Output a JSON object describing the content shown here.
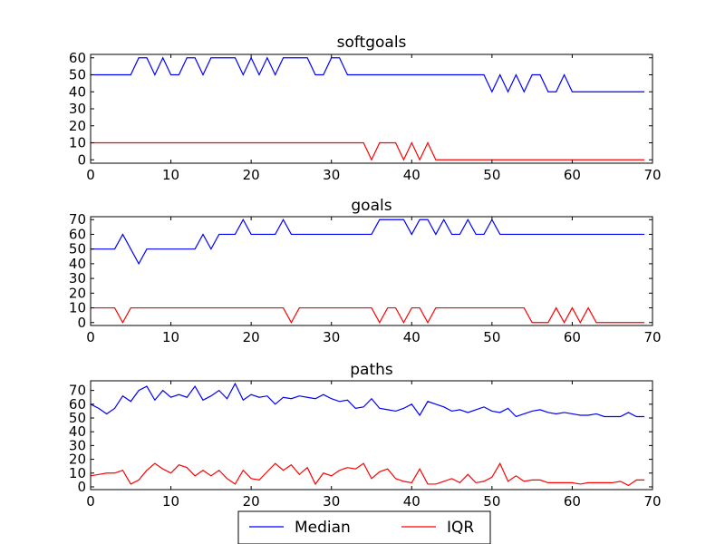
{
  "chart_data": [
    {
      "type": "line",
      "title": "softgoals",
      "xlabel": "",
      "ylabel": "",
      "xlim": [
        0,
        70
      ],
      "ylim": [
        -2,
        62
      ],
      "xticks": [
        "0",
        "10",
        "20",
        "30",
        "40",
        "50",
        "60",
        "70"
      ],
      "yticks": [
        "0",
        "10",
        "20",
        "30",
        "40",
        "50",
        "60"
      ],
      "grid": false,
      "x_start": 0,
      "series": [
        {
          "name": "Median",
          "color": "#0000ff",
          "values": [
            50,
            50,
            50,
            50,
            50,
            50,
            60,
            60,
            50,
            60,
            50,
            50,
            60,
            60,
            50,
            60,
            60,
            60,
            60,
            50,
            60,
            50,
            60,
            50,
            60,
            60,
            60,
            60,
            50,
            50,
            60,
            60,
            50,
            50,
            50,
            50,
            50,
            50,
            50,
            50,
            50,
            50,
            50,
            50,
            50,
            50,
            50,
            50,
            50,
            50,
            40,
            50,
            40,
            50,
            40,
            50,
            50,
            40,
            40,
            50,
            40,
            40,
            40,
            40,
            40,
            40,
            40,
            40,
            40,
            40
          ]
        },
        {
          "name": "IQR",
          "color": "#ff0000",
          "values": [
            10,
            10,
            10,
            10,
            10,
            10,
            10,
            10,
            10,
            10,
            10,
            10,
            10,
            10,
            10,
            10,
            10,
            10,
            10,
            10,
            10,
            10,
            10,
            10,
            10,
            10,
            10,
            10,
            10,
            10,
            10,
            10,
            10,
            10,
            10,
            0,
            10,
            10,
            10,
            0,
            10,
            0,
            10,
            0,
            0,
            0,
            0,
            0,
            0,
            0,
            0,
            0,
            0,
            0,
            0,
            0,
            0,
            0,
            0,
            0,
            0,
            0,
            0,
            0,
            0,
            0,
            0,
            0,
            0,
            0
          ]
        }
      ]
    },
    {
      "type": "line",
      "title": "goals",
      "xlabel": "",
      "ylabel": "",
      "xlim": [
        0,
        70
      ],
      "ylim": [
        -2,
        72
      ],
      "xticks": [
        "0",
        "10",
        "20",
        "30",
        "40",
        "50",
        "60",
        "70"
      ],
      "yticks": [
        "0",
        "10",
        "20",
        "30",
        "40",
        "50",
        "60",
        "70"
      ],
      "grid": false,
      "x_start": 0,
      "series": [
        {
          "name": "Median",
          "color": "#0000ff",
          "values": [
            50,
            50,
            50,
            50,
            60,
            50,
            40,
            50,
            50,
            50,
            50,
            50,
            50,
            50,
            60,
            50,
            60,
            60,
            60,
            70,
            60,
            60,
            60,
            60,
            70,
            60,
            60,
            60,
            60,
            60,
            60,
            60,
            60,
            60,
            60,
            60,
            70,
            70,
            70,
            70,
            60,
            70,
            70,
            60,
            70,
            60,
            60,
            70,
            60,
            60,
            70,
            60,
            60,
            60,
            60,
            60,
            60,
            60,
            60,
            60,
            60,
            60,
            60,
            60,
            60,
            60,
            60,
            60,
            60,
            60
          ]
        },
        {
          "name": "IQR",
          "color": "#ff0000",
          "values": [
            10,
            10,
            10,
            10,
            0,
            10,
            10,
            10,
            10,
            10,
            10,
            10,
            10,
            10,
            10,
            10,
            10,
            10,
            10,
            10,
            10,
            10,
            10,
            10,
            10,
            0,
            10,
            10,
            10,
            10,
            10,
            10,
            10,
            10,
            10,
            10,
            0,
            10,
            10,
            0,
            10,
            10,
            0,
            10,
            10,
            10,
            10,
            10,
            10,
            10,
            10,
            10,
            10,
            10,
            10,
            0,
            0,
            0,
            10,
            0,
            10,
            0,
            10,
            0,
            0,
            0,
            0,
            0,
            0,
            0
          ]
        }
      ]
    },
    {
      "type": "line",
      "title": "paths",
      "xlabel": "",
      "ylabel": "",
      "xlim": [
        0,
        70
      ],
      "ylim": [
        -2,
        77
      ],
      "xticks": [
        "0",
        "10",
        "20",
        "30",
        "40",
        "50",
        "60",
        "70"
      ],
      "yticks": [
        "0",
        "10",
        "20",
        "30",
        "40",
        "50",
        "60",
        "70"
      ],
      "grid": false,
      "x_start": 0,
      "series": [
        {
          "name": "Median",
          "color": "#0000ff",
          "values": [
            60,
            57,
            53,
            57,
            66,
            62,
            70,
            73,
            63,
            70,
            65,
            67,
            65,
            73,
            63,
            66,
            70,
            64,
            75,
            63,
            67,
            65,
            66,
            60,
            65,
            64,
            66,
            65,
            64,
            67,
            64,
            62,
            63,
            57,
            58,
            64,
            57,
            56,
            55,
            57,
            60,
            52,
            62,
            60,
            58,
            55,
            56,
            54,
            56,
            58,
            55,
            54,
            57,
            51,
            53,
            55,
            56,
            54,
            53,
            54,
            53,
            52,
            52,
            53,
            51,
            51,
            51,
            54,
            51,
            51
          ]
        },
        {
          "name": "IQR",
          "color": "#ff0000",
          "values": [
            8,
            9,
            10,
            10,
            12,
            2,
            5,
            12,
            17,
            13,
            10,
            16,
            14,
            8,
            12,
            8,
            12,
            6,
            2,
            12,
            6,
            5,
            11,
            17,
            12,
            16,
            9,
            14,
            2,
            10,
            8,
            12,
            14,
            13,
            17,
            6,
            11,
            13,
            6,
            4,
            3,
            13,
            2,
            2,
            4,
            6,
            3,
            9,
            3,
            4,
            7,
            17,
            4,
            8,
            4,
            5,
            5,
            3,
            3,
            3,
            3,
            2,
            3,
            3,
            3,
            3,
            4,
            1,
            5,
            5
          ]
        }
      ]
    }
  ],
  "legend": {
    "placement": "bottom-center",
    "entries": [
      {
        "label": "Median",
        "color": "#0000ff"
      },
      {
        "label": "IQR",
        "color": "#ff0000"
      }
    ]
  }
}
